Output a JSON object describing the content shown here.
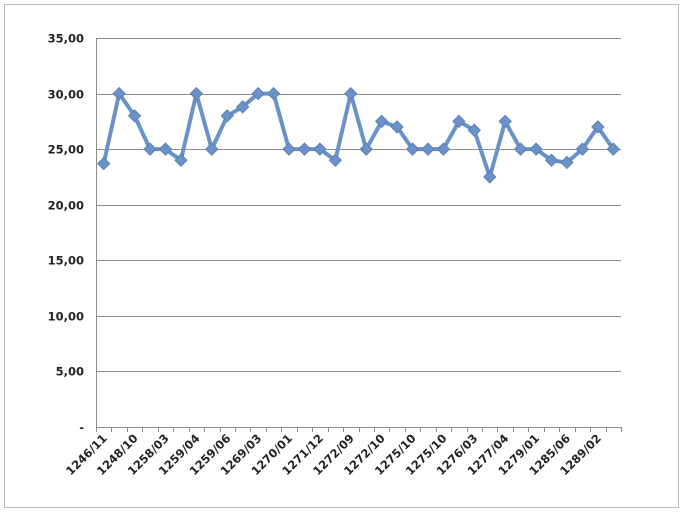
{
  "chart_data": {
    "type": "line",
    "title": "",
    "xlabel": "",
    "ylabel": "",
    "ylim": [
      0,
      35
    ],
    "grid": true,
    "legend": "none",
    "y_ticks": [
      {
        "value": 0,
        "label": "-"
      },
      {
        "value": 5,
        "label": "5,00"
      },
      {
        "value": 10,
        "label": "10,00"
      },
      {
        "value": 15,
        "label": "15,00"
      },
      {
        "value": 20,
        "label": "20,00"
      },
      {
        "value": 25,
        "label": "25,00"
      },
      {
        "value": 30,
        "label": "30,00"
      },
      {
        "value": 35,
        "label": "35,00"
      }
    ],
    "x_tick_labels": [
      "1246/11",
      "1248/10",
      "1258/03",
      "1259/04",
      "1259/06",
      "1269/03",
      "1270/01",
      "1271/12",
      "1272/09",
      "1272/10",
      "1275/10",
      "1275/10",
      "1276/03",
      "1277/04",
      "1279/01",
      "1285/06",
      "1289/02"
    ],
    "series": [
      {
        "name": "",
        "color": "#6a92c9",
        "values": [
          23.7,
          30.0,
          28.0,
          25.0,
          25.0,
          24.0,
          30.0,
          25.0,
          28.0,
          28.8,
          30.0,
          30.0,
          25.0,
          25.0,
          25.0,
          24.0,
          30.0,
          25.0,
          27.5,
          27.0,
          25.0,
          25.0,
          25.0,
          27.5,
          26.7,
          22.5,
          27.5,
          25.0,
          25.0,
          24.0,
          23.8,
          25.0,
          27.0,
          25.0
        ]
      }
    ]
  }
}
